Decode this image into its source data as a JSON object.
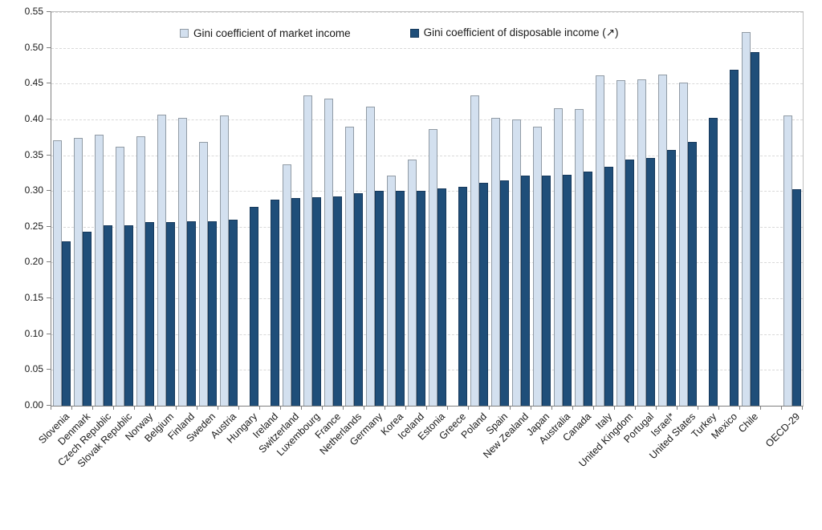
{
  "chart_data": {
    "type": "bar",
    "title": "",
    "categories": [
      "Slovenia",
      "Denmark",
      "Czech Republic",
      "Slovak Republic",
      "Norway",
      "Belgium",
      "Finland",
      "Sweden",
      "Austria",
      "Hungary",
      "Ireland",
      "Switzerland",
      "Luxembourg",
      "France",
      "Netherlands",
      "Germany",
      "Korea",
      "Iceland",
      "Estonia",
      "Greece",
      "Poland",
      "Spain",
      "New Zealand",
      "Japan",
      "Australia",
      "Canada",
      "Italy",
      "United Kingdom",
      "Portugal",
      "Israel*",
      "United States",
      "Turkey",
      "Mexico",
      "Chile",
      "OECD-29"
    ],
    "series": [
      {
        "name": "Gini coefficient of market income",
        "color": "#d3e0ef",
        "border_color": "#919ba5",
        "values": [
          0.371,
          0.374,
          0.379,
          0.362,
          0.376,
          0.407,
          0.402,
          0.368,
          0.405,
          null,
          null,
          0.337,
          0.433,
          0.429,
          0.39,
          0.418,
          0.322,
          0.344,
          0.387,
          null,
          0.433,
          0.402,
          0.4,
          0.39,
          0.416,
          0.414,
          0.462,
          0.455,
          0.456,
          0.463,
          0.451,
          null,
          null,
          0.522,
          0.406
        ]
      },
      {
        "name": "Gini coefficient of disposable income (↗)",
        "color": "#1f4e79",
        "border_color": "#16395c",
        "values": [
          0.23,
          0.243,
          0.252,
          0.252,
          0.256,
          0.257,
          0.258,
          0.258,
          0.26,
          0.278,
          0.288,
          0.29,
          0.291,
          0.292,
          0.297,
          0.3,
          0.3,
          0.3,
          0.304,
          0.306,
          0.311,
          0.315,
          0.322,
          0.322,
          0.323,
          0.327,
          0.334,
          0.344,
          0.346,
          0.357,
          0.369,
          0.402,
          0.469,
          0.494,
          0.303
        ]
      }
    ],
    "xlabel": "",
    "ylabel": "",
    "ylim": [
      0,
      0.55
    ],
    "ytick_step": 0.05,
    "ytick_labels": [
      "0.00",
      "0.05",
      "0.10",
      "0.15",
      "0.20",
      "0.25",
      "0.30",
      "0.35",
      "0.40",
      "0.45",
      "0.50",
      "0.55"
    ],
    "grid": "horizontal-dashed",
    "legend_position": "top",
    "gap_before_last_category": true,
    "x_label_rotation_deg": 45
  },
  "colors": {
    "background": "#ffffff",
    "gridline": "#d9d9d9",
    "axis": "#808080",
    "plot_frame": "#bfbfbf",
    "text": "#1a1a1a"
  }
}
